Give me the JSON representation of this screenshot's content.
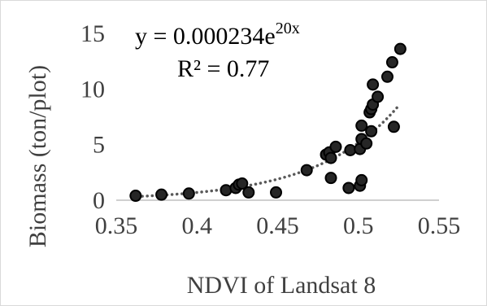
{
  "chart_data": {
    "type": "scatter",
    "xlabel": "NDVI of Landsat 8",
    "ylabel": "Biomass (ton/plot)",
    "xlim": [
      0.35,
      0.55
    ],
    "ylim": [
      0,
      15
    ],
    "x_ticks": [
      0.35,
      0.4,
      0.45,
      0.5,
      0.55
    ],
    "x_tick_labels": [
      "0.35",
      "0.4",
      "0.45",
      "0.5",
      "0.55"
    ],
    "y_ticks": [
      0,
      5,
      10,
      15
    ],
    "y_tick_labels": [
      "0",
      "5",
      "10",
      "15"
    ],
    "grid": false,
    "legend": false,
    "marker_color": "#000000",
    "marker_fill": "#262626",
    "trendline": {
      "type": "exponential",
      "a": 0.000234,
      "b": 20,
      "color": "#595959",
      "style": "dotted",
      "x_range": [
        0.36,
        0.525
      ]
    },
    "equation": {
      "prefix": "y = 0.000234e",
      "exponent": "20x",
      "r2": "R² = 0.77"
    },
    "points": [
      {
        "x": 0.362,
        "y": 0.4
      },
      {
        "x": 0.378,
        "y": 0.5
      },
      {
        "x": 0.395,
        "y": 0.6
      },
      {
        "x": 0.418,
        "y": 0.9
      },
      {
        "x": 0.424,
        "y": 1.1
      },
      {
        "x": 0.426,
        "y": 1.4
      },
      {
        "x": 0.428,
        "y": 1.5
      },
      {
        "x": 0.432,
        "y": 0.7
      },
      {
        "x": 0.449,
        "y": 0.7
      },
      {
        "x": 0.468,
        "y": 2.7
      },
      {
        "x": 0.48,
        "y": 4.1
      },
      {
        "x": 0.482,
        "y": 4.3
      },
      {
        "x": 0.483,
        "y": 3.8
      },
      {
        "x": 0.483,
        "y": 2.0
      },
      {
        "x": 0.486,
        "y": 4.8
      },
      {
        "x": 0.494,
        "y": 1.1
      },
      {
        "x": 0.495,
        "y": 4.5
      },
      {
        "x": 0.501,
        "y": 4.6
      },
      {
        "x": 0.501,
        "y": 1.3
      },
      {
        "x": 0.502,
        "y": 1.8
      },
      {
        "x": 0.502,
        "y": 5.5
      },
      {
        "x": 0.502,
        "y": 6.7
      },
      {
        "x": 0.505,
        "y": 5.1
      },
      {
        "x": 0.507,
        "y": 7.9
      },
      {
        "x": 0.508,
        "y": 6.2
      },
      {
        "x": 0.508,
        "y": 8.2
      },
      {
        "x": 0.509,
        "y": 8.6
      },
      {
        "x": 0.509,
        "y": 10.4
      },
      {
        "x": 0.512,
        "y": 9.3
      },
      {
        "x": 0.518,
        "y": 11.1
      },
      {
        "x": 0.521,
        "y": 12.4
      },
      {
        "x": 0.522,
        "y": 6.6
      },
      {
        "x": 0.526,
        "y": 13.6
      }
    ]
  }
}
